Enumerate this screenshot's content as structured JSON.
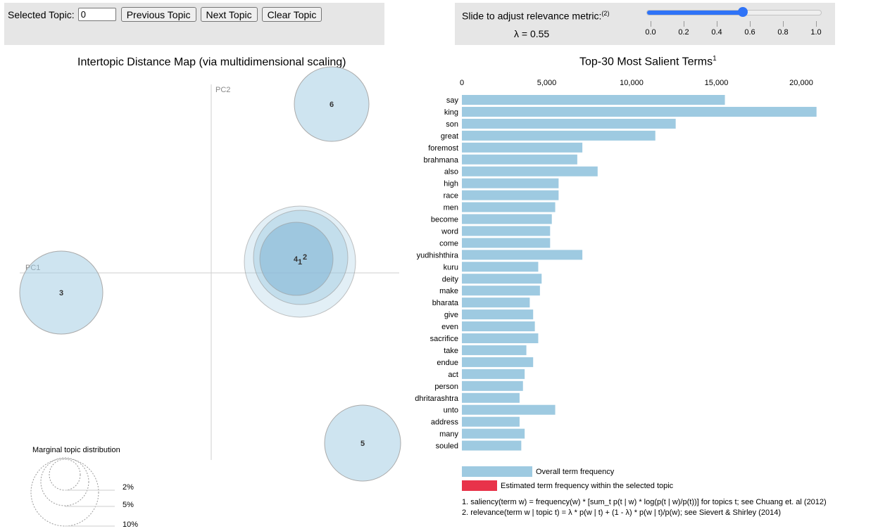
{
  "topic_controls": {
    "selected_label": "Selected Topic:",
    "selected_value": "0",
    "prev_label": "Previous Topic",
    "next_label": "Next Topic",
    "clear_label": "Clear Topic"
  },
  "lambda_controls": {
    "title": "Slide to adjust relevance metric:",
    "title_note": "(2)",
    "value_text": "λ = 0.55",
    "value": 0.55,
    "range": [
      0,
      1
    ],
    "ticks": [
      "0.0",
      "0.2",
      "0.4",
      "0.6",
      "0.8",
      "1.0"
    ]
  },
  "intertopic_map": {
    "title": "Intertopic Distance Map (via multidimensional scaling)",
    "xaxis_label": "PC1",
    "yaxis_label": "PC2",
    "topics": [
      {
        "label": "1"
      },
      {
        "label": "2"
      },
      {
        "label": "3"
      },
      {
        "label": "4"
      },
      {
        "label": "5"
      },
      {
        "label": "6"
      }
    ],
    "marginal_legend": {
      "title": "Marginal topic distribution",
      "levels": [
        "2%",
        "5%",
        "10%"
      ]
    }
  },
  "terms_chart": {
    "title": "Top-30 Most Salient Terms",
    "title_note": "1",
    "axis_ticks": [
      "0",
      "5,000",
      "10,000",
      "15,000",
      "20,000"
    ],
    "legend": {
      "overall": "Overall term frequency",
      "selected": "Estimated term frequency within the selected topic"
    },
    "colors": {
      "overall": "#9ecae1",
      "selected": "#e8334a"
    }
  },
  "chart_data": {
    "type": "bar",
    "orientation": "horizontal",
    "categories": [
      "say",
      "king",
      "son",
      "great",
      "foremost",
      "brahmana",
      "also",
      "high",
      "race",
      "men",
      "become",
      "word",
      "come",
      "yudhishthira",
      "kuru",
      "deity",
      "make",
      "bharata",
      "give",
      "even",
      "sacrifice",
      "take",
      "endue",
      "act",
      "person",
      "dhritarashtra",
      "unto",
      "address",
      "many",
      "souled"
    ],
    "series": [
      {
        "name": "Overall term frequency",
        "values": [
          15500,
          20900,
          12600,
          11400,
          7100,
          6800,
          8000,
          5700,
          5700,
          5500,
          5300,
          5200,
          5200,
          7100,
          4500,
          4700,
          4600,
          4000,
          4200,
          4300,
          4500,
          3800,
          4200,
          3700,
          3600,
          3400,
          5500,
          3400,
          3700,
          3500
        ]
      }
    ],
    "xlim": [
      0,
      21000
    ]
  },
  "footnotes": [
    "1. saliency(term w) = frequency(w) * [sum_t p(t | w) * log(p(t | w)/p(t))] for topics t; see Chuang et. al (2012)",
    "2. relevance(term w | topic t) = λ * p(w | t) + (1 - λ) * p(w | t)/p(w); see Sievert & Shirley (2014)"
  ]
}
